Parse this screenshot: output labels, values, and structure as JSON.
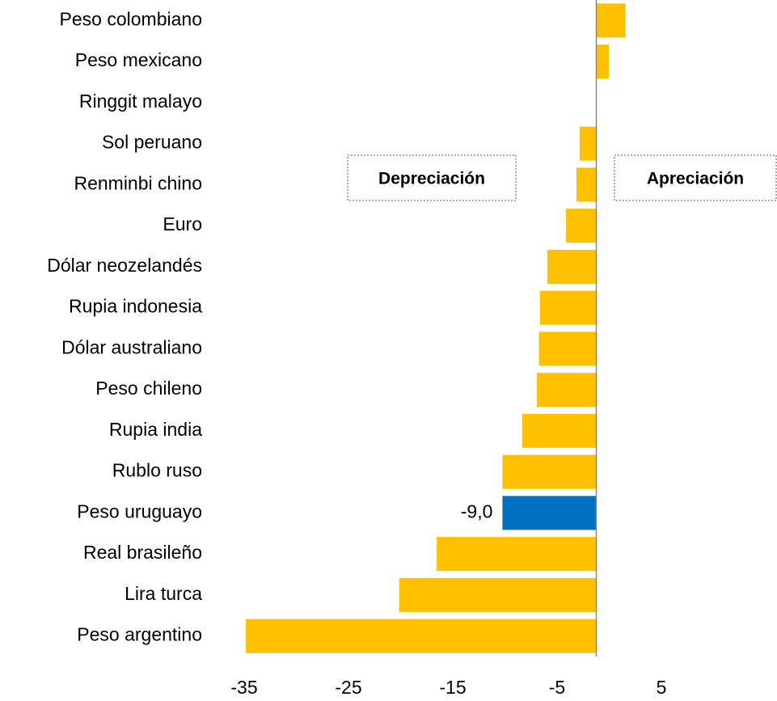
{
  "chart_data": {
    "type": "bar",
    "orientation": "horizontal",
    "categories": [
      "Peso colombiano",
      "Peso mexicano",
      "Ringgit malayo",
      "Sol peruano",
      "Renminbi chino",
      "Euro",
      "Dólar neozelandés",
      "Rupia indonesia",
      "Dólar australiano",
      "Peso chileno",
      "Rupia india",
      "Rublo ruso",
      "Peso uruguayo",
      "Real brasileño",
      "Lira turca",
      "Peso argentino"
    ],
    "values": [
      2.8,
      1.2,
      0,
      -1.6,
      -1.9,
      -2.9,
      -4.7,
      -5.4,
      -5.5,
      -5.7,
      -7.1,
      -9.0,
      -9.0,
      -15.3,
      -18.9,
      -33.6
    ],
    "value_labels": [
      null,
      null,
      null,
      null,
      null,
      null,
      null,
      null,
      null,
      null,
      null,
      null,
      "-9,0",
      null,
      null,
      null
    ],
    "colors": [
      "#ffc000",
      "#ffc000",
      "#ffc000",
      "#ffc000",
      "#ffc000",
      "#ffc000",
      "#ffc000",
      "#ffc000",
      "#ffc000",
      "#ffc000",
      "#ffc000",
      "#ffc000",
      "#0070c0",
      "#ffc000",
      "#ffc000",
      "#ffc000"
    ],
    "xlim": [
      -35,
      5
    ],
    "xticks": [
      -35,
      -25,
      -15,
      -5,
      5
    ],
    "annotations": [
      "Depreciación",
      "Apreciación"
    ]
  }
}
